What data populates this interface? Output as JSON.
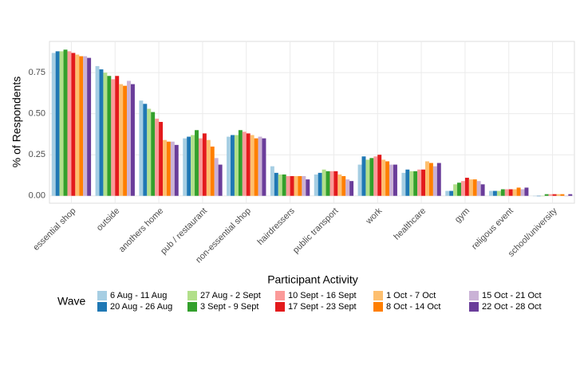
{
  "chart_data": {
    "type": "bar",
    "x_label": "Participant Activity",
    "y_label": "% of Respondents",
    "legend_title": "Wave",
    "legend_position": "bottom",
    "grid": true,
    "categories": [
      "essential shop",
      "outside",
      "anothers home",
      "pub / restaurant",
      "non-essential shop",
      "hairdressers",
      "public transport",
      "work",
      "healthcare",
      "gym",
      "religous event",
      "school/university"
    ],
    "ylim": [
      -0.045,
      0.94
    ],
    "yticks": [
      {
        "value": 0,
        "label": "0.00"
      },
      {
        "value": 0.25,
        "label": "0.25"
      },
      {
        "value": 0.5,
        "label": "0.50"
      },
      {
        "value": 0.75,
        "label": "0.75"
      }
    ],
    "series": [
      {
        "name": "6 Aug - 11 Aug",
        "color": "#a6cee3",
        "values": [
          0.87,
          0.79,
          0.58,
          0.35,
          0.36,
          0.18,
          0.13,
          0.19,
          0.14,
          0.03,
          0.03,
          0.0
        ]
      },
      {
        "name": "20 Aug - 26 Aug",
        "color": "#1f78b4",
        "values": [
          0.88,
          0.77,
          0.56,
          0.36,
          0.37,
          0.14,
          0.14,
          0.24,
          0.16,
          0.03,
          0.03,
          0.0
        ]
      },
      {
        "name": "27 Aug - 2 Sept",
        "color": "#b2df8a",
        "values": [
          0.88,
          0.75,
          0.53,
          0.37,
          0.37,
          0.13,
          0.16,
          0.22,
          0.15,
          0.07,
          0.03,
          0.0
        ]
      },
      {
        "name": "3 Sept - 9 Sept",
        "color": "#33a02c",
        "values": [
          0.89,
          0.73,
          0.51,
          0.4,
          0.4,
          0.13,
          0.15,
          0.23,
          0.15,
          0.08,
          0.04,
          0.01
        ]
      },
      {
        "name": "10 Sept - 16 Sept",
        "color": "#fb9a99",
        "values": [
          0.88,
          0.71,
          0.47,
          0.35,
          0.39,
          0.12,
          0.15,
          0.24,
          0.16,
          0.09,
          0.04,
          0.01
        ]
      },
      {
        "name": "17 Sept - 23 Sept",
        "color": "#e31a1c",
        "values": [
          0.87,
          0.73,
          0.45,
          0.38,
          0.38,
          0.12,
          0.15,
          0.25,
          0.16,
          0.11,
          0.04,
          0.01
        ]
      },
      {
        "name": "1 Oct - 7 Oct",
        "color": "#fdbf6f",
        "values": [
          0.86,
          0.68,
          0.34,
          0.34,
          0.37,
          0.12,
          0.13,
          0.22,
          0.21,
          0.1,
          0.04,
          0.01
        ]
      },
      {
        "name": "8 Oct - 14 Oct",
        "color": "#ff7f00",
        "values": [
          0.85,
          0.67,
          0.33,
          0.3,
          0.35,
          0.12,
          0.12,
          0.21,
          0.2,
          0.1,
          0.05,
          0.01
        ]
      },
      {
        "name": "15 Oct - 21 Oct",
        "color": "#cab2d6",
        "values": [
          0.85,
          0.7,
          0.33,
          0.23,
          0.36,
          0.12,
          0.1,
          0.19,
          0.18,
          0.09,
          0.04,
          0.0
        ]
      },
      {
        "name": "22 Oct - 28 Oct",
        "color": "#6a3d9a",
        "values": [
          0.84,
          0.68,
          0.31,
          0.19,
          0.35,
          0.1,
          0.09,
          0.19,
          0.2,
          0.07,
          0.05,
          0.01
        ]
      }
    ]
  }
}
